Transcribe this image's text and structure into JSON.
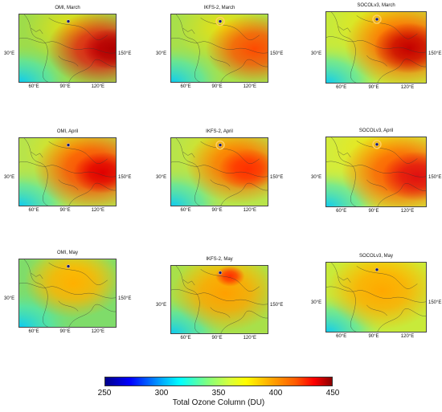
{
  "panels": [
    {
      "title": "OMI, March",
      "lat_label": "30°E",
      "lon_label_right": "150°E",
      "lon_ticks": [
        "60°E",
        "90°E",
        "120°E"
      ],
      "month": "March",
      "source": "OMI"
    },
    {
      "title": "IKFS-2, March",
      "lat_label": "30°E",
      "lon_label_right": "150°E",
      "lon_ticks": [
        "60°E",
        "90°E",
        "120°E"
      ],
      "month": "March",
      "source": "IKFS-2"
    },
    {
      "title": "SOCOLv3, March",
      "lat_label": "30°E",
      "lon_label_right": "150°E",
      "lon_ticks": [
        "60°E",
        "90°E",
        "120°E"
      ],
      "month": "March",
      "source": "SOCOLv3"
    },
    {
      "title": "OMI, April",
      "lat_label": "30°E",
      "lon_label_right": "150°E",
      "lon_ticks": [
        "60°E",
        "90°E",
        "120°E"
      ],
      "month": "April",
      "source": "OMI"
    },
    {
      "title": "IKFS-2, April",
      "lat_label": "30°E",
      "lon_label_right": "150°E",
      "lon_ticks": [
        "60°E",
        "90°E",
        "120°E"
      ],
      "month": "April",
      "source": "IKFS-2"
    },
    {
      "title": "SOCOLv3, April",
      "lat_label": "30°E",
      "lon_label_right": "150°E",
      "lon_ticks": [
        "60°E",
        "90°E",
        "120°E"
      ],
      "month": "April",
      "source": "SOCOLv3"
    },
    {
      "title": "OMI, May",
      "lat_label": "30°E",
      "lon_label_right": "150°E",
      "lon_ticks": [
        "60°E",
        "90°E",
        "120°E"
      ],
      "month": "May",
      "source": "OMI"
    },
    {
      "title": "IKFS-2, May",
      "lat_label": "30°E",
      "lon_label_right": "150°E",
      "lon_ticks": [
        "60°E",
        "90°E",
        "120°E"
      ],
      "month": "May",
      "source": "IKFS-2"
    },
    {
      "title": "SOCOLv3, May",
      "lat_label": "30°E",
      "lon_label_right": "150°E",
      "lon_ticks": [
        "60°E",
        "90°E",
        "120°E"
      ],
      "month": "May",
      "source": "SOCOLv3"
    }
  ],
  "colorbar": {
    "title": "Total Ozone Column (DU)",
    "ticks": [
      "250",
      "300",
      "350",
      "400",
      "450"
    ],
    "min": 250,
    "max": 450,
    "colors": [
      "#00008b",
      "#0000ff",
      "#00ffff",
      "#ffff00",
      "#ff0000",
      "#8b0000"
    ]
  }
}
